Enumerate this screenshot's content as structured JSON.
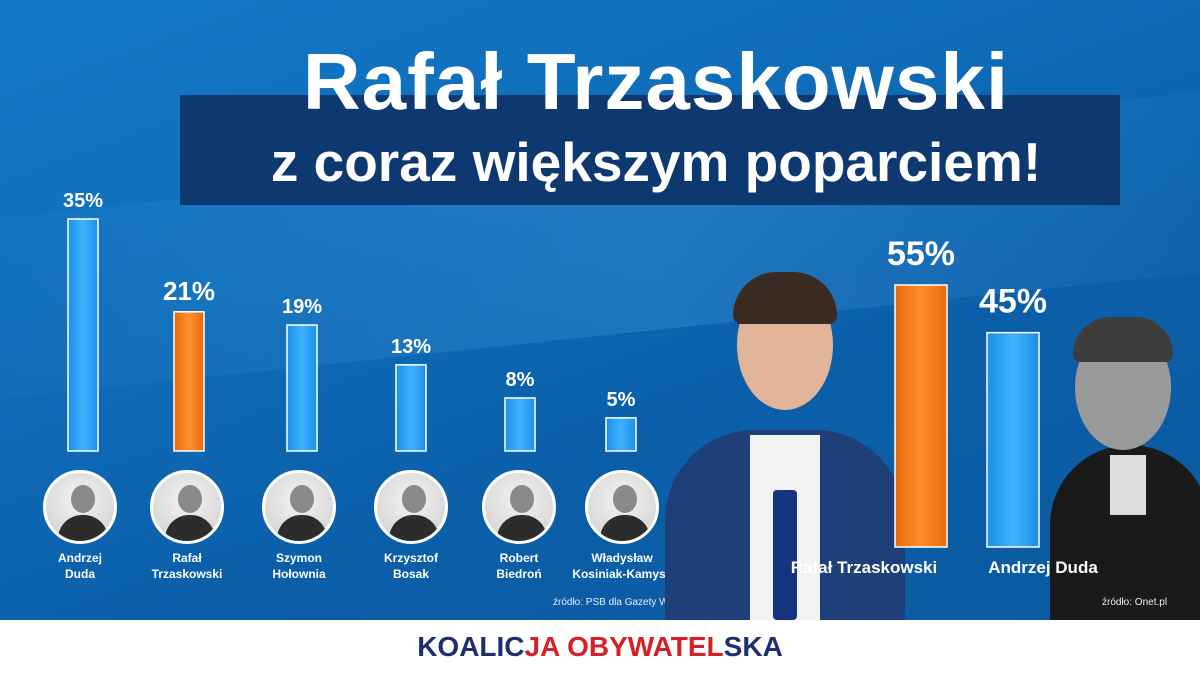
{
  "title": {
    "line1": "Rafał Trzaskowski",
    "line2": "z coraz większym poparciem!"
  },
  "colors": {
    "blue_bar": "#1e9cf4",
    "orange_bar": "#f47a17",
    "title_band": "#0e3970",
    "brand_navy": "#1d2f6f",
    "brand_red": "#d62027"
  },
  "candidates": [
    {
      "name_line1": "Andrzej",
      "name_line2": "Duda",
      "photo": "andrzej-duda-photo"
    },
    {
      "name_line1": "Rafał",
      "name_line2": "Trzaskowski",
      "photo": "rafal-trzaskowski-photo"
    },
    {
      "name_line1": "Szymon",
      "name_line2": "Hołownia",
      "photo": "szymon-holownia-photo"
    },
    {
      "name_line1": "Krzysztof",
      "name_line2": "Bosak",
      "photo": "krzysztof-bosak-photo"
    },
    {
      "name_line1": "Robert",
      "name_line2": "Biedroń",
      "photo": "robert-biedron-photo"
    },
    {
      "name_line1": "Władysław",
      "name_line2": "Kosiniak-Kamysz",
      "photo": "wladyslaw-kosiniak-kamysz-photo"
    }
  ],
  "source_left": "źródło: PSB dla Gazety Wyborczej",
  "source_right": "źródło: Onet.pl",
  "final_names": [
    "Rafał Trzaskowski",
    "Andrzej Duda"
  ],
  "brand": {
    "part1": "KOALIC",
    "part2": "JA ",
    "part3": "OBYWATEL",
    "part4": "SKA"
  },
  "chart_data": [
    {
      "type": "bar",
      "categories": [
        "Andrzej Duda",
        "Rafał Trzaskowski",
        "Szymon Hołownia",
        "Krzysztof Bosak",
        "Robert Biedroń",
        "Władysław Kosiniak-Kamysz"
      ],
      "values": [
        35,
        21,
        19,
        13,
        8,
        5
      ],
      "labels": [
        "35%",
        "21%",
        "19%",
        "13%",
        "8%",
        "5%"
      ],
      "highlight_index": 1,
      "ylim": [
        0,
        35
      ],
      "grid": false
    },
    {
      "type": "bar",
      "categories": [
        "Rafał Trzaskowski",
        "Andrzej Duda"
      ],
      "values": [
        55,
        45
      ],
      "labels": [
        "55%",
        "45%"
      ],
      "highlight_index": 0,
      "ylim": [
        0,
        55
      ],
      "grid": false
    }
  ]
}
